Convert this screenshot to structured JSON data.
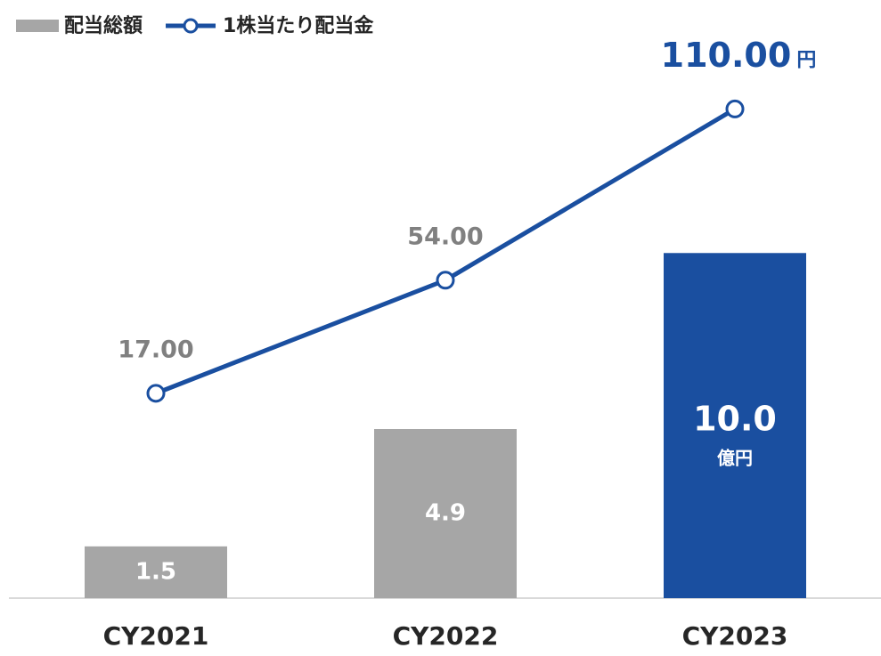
{
  "chart_data": {
    "type": "bar",
    "categories": [
      "CY2021",
      "CY2022",
      "CY2023"
    ],
    "ylim": [
      0,
      16.3
    ],
    "y2lim": [
      -50,
      134
    ],
    "series": [
      {
        "name": "配当総額",
        "type": "bar",
        "color": "#a6a6a6",
        "colors": [
          "#a6a6a6",
          "#a6a6a6",
          "#1a4fa0"
        ],
        "values": [
          1.5,
          4.9,
          10.0
        ],
        "value_labels": [
          "1.5",
          "4.9",
          "10.0"
        ],
        "unit": "億円"
      },
      {
        "name": "1株当たり配当金",
        "type": "line",
        "axis": "y2",
        "color": "#1a4fa0",
        "values": [
          17,
          54,
          110
        ],
        "value_labels": [
          "17.00",
          "54.00",
          "110.00"
        ],
        "unit": "円"
      }
    ]
  }
}
